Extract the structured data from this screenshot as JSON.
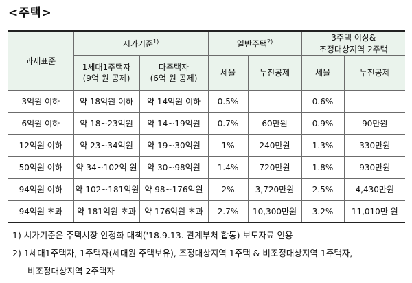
{
  "title": "<주택>",
  "table": {
    "header": {
      "tax_base": "과세표준",
      "market_price": "시가기준",
      "market_price_note": "1)",
      "general": "일반주택",
      "general_note": "2)",
      "multi_line1": "3주택 이상&",
      "multi_line2": "조정대상지역 2주택",
      "single_line1": "1세대1주택자",
      "single_line2": "(9억 원 공제)",
      "multi_owner_line1": "다주택자",
      "multi_owner_line2": "(6억 원 공제)",
      "rate": "세율",
      "deduction": "누진공제",
      "rate2": "세율",
      "deduction2": "누진공제"
    },
    "rows": [
      {
        "base": "3억원 이하",
        "single": "약 18억원 이하",
        "multi": "약 14억원 이하",
        "g_rate": "0.5%",
        "g_ded": "-",
        "m_rate": "0.6%",
        "m_ded": "-"
      },
      {
        "base": "6억원 이하",
        "single": "약 18~23억원",
        "multi": "약 14~19억원",
        "g_rate": "0.7%",
        "g_ded": "60만원",
        "m_rate": "0.9%",
        "m_ded": "90만원"
      },
      {
        "base": "12억원 이하",
        "single": "약 23~34억원",
        "multi": "약 19~30억원",
        "g_rate": "1%",
        "g_ded": "240만원",
        "m_rate": "1.3%",
        "m_ded": "330만원"
      },
      {
        "base": "50억원 이하",
        "single": "약 34~102억 원",
        "multi": "약 30~98억원",
        "g_rate": "1.4%",
        "g_ded": "720만원",
        "m_rate": "1.8%",
        "m_ded": "930만원"
      },
      {
        "base": "94억원 이하",
        "single": "약 102~181억원",
        "multi": "약 98~176억원",
        "g_rate": "2%",
        "g_ded": "3,720만원",
        "m_rate": "2.5%",
        "m_ded": "4,430만원"
      },
      {
        "base": "94억원 초과",
        "single": "약 181억원 초과",
        "multi": "약 176억원 초과",
        "g_rate": "2.7%",
        "g_ded": "10,300만원",
        "m_rate": "3.2%",
        "m_ded": "11,010만 원"
      }
    ]
  },
  "notes": {
    "n1": "1) 시가기준은 주택시장 안정화 대책('18.9.13. 관계부처 합동) 보도자료 인용",
    "n2_line1": "2) 1세대1주택자, 1주택자(세대원 주택보유), 조정대상지역 1주택 & 비조정대상지역 1주택자,",
    "n2_line2": "비조정대상지역 2주택자"
  }
}
